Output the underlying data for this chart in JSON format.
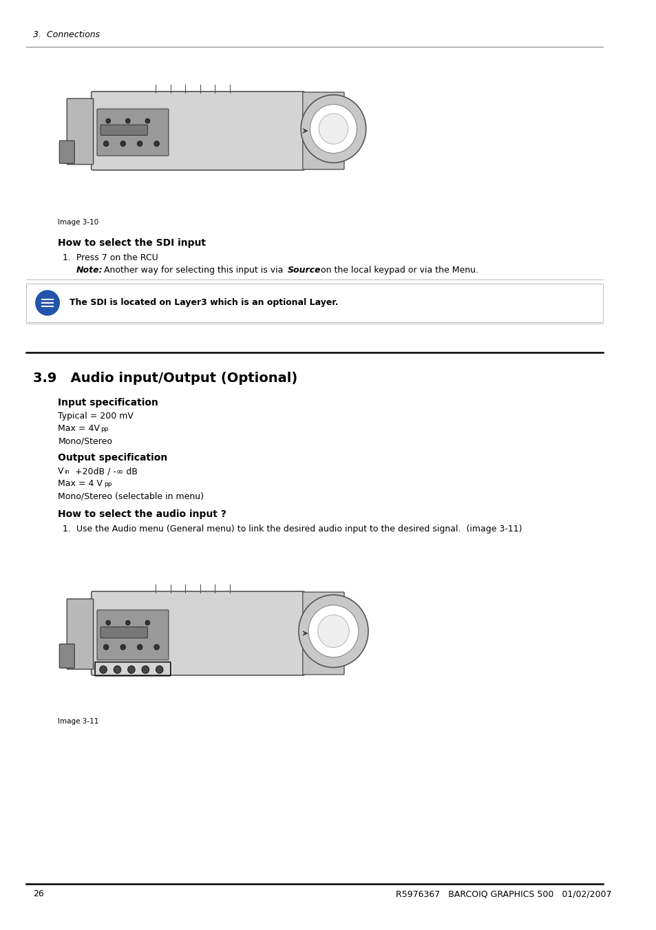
{
  "page_bg": "#ffffff",
  "top_section_header": "3.  Connections",
  "image1_caption": "Image 3-10",
  "section_how_to_sdi": "How to select the SDI input",
  "step1_sdi": "1.  Press 7 on the RCU",
  "note_label": "Note:",
  "callout_text": "The SDI is located on Layer3 which is an optional Layer.",
  "section_39_title": "3.9   Audio input/Output (Optional)",
  "input_spec_title": "Input specification",
  "output_spec_title": "Output specification",
  "how_to_audio_title": "How to select the audio input ?",
  "how_to_audio_step": "1.  Use the Audio menu (General menu) to link the desired audio input to the desired signal.  (image 3-11)",
  "image2_caption": "Image 3-11",
  "footer_page": "26",
  "footer_text": "R5976367   BARCOIQ GRAPHICS 500   01/02/2007"
}
